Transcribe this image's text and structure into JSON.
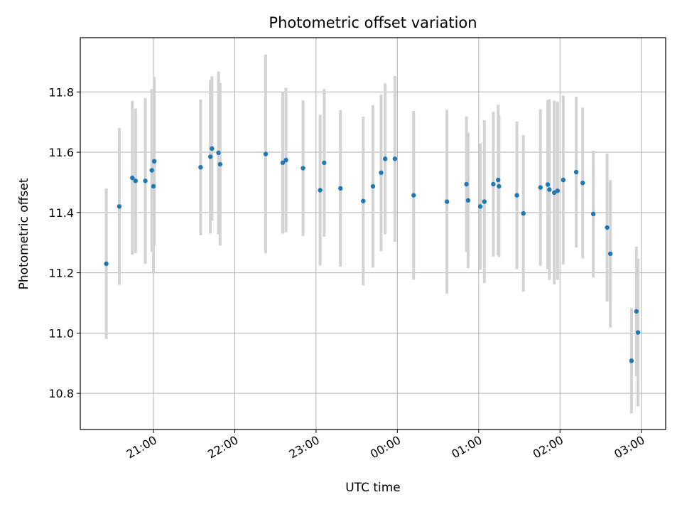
{
  "chart_data": {
    "type": "scatter",
    "title": "Photometric offset variation",
    "xlabel": "UTC time",
    "ylabel": "Photometric offset",
    "grid": true,
    "x_unit": "UTC hours (24-26 = 00:00-02:00 next day)",
    "xlim": [
      20.1,
      27.3
    ],
    "ylim": [
      10.68,
      11.98
    ],
    "x_ticks": [
      {
        "value": 21,
        "label": "21:00"
      },
      {
        "value": 22,
        "label": "22:00"
      },
      {
        "value": 23,
        "label": "23:00"
      },
      {
        "value": 24,
        "label": "00:00"
      },
      {
        "value": 25,
        "label": "01:00"
      },
      {
        "value": 26,
        "label": "02:00"
      },
      {
        "value": 27,
        "label": "03:00"
      }
    ],
    "y_ticks": [
      {
        "value": 10.8,
        "label": "10.8"
      },
      {
        "value": 11.0,
        "label": "11.0"
      },
      {
        "value": 11.2,
        "label": "11.2"
      },
      {
        "value": 11.4,
        "label": "11.4"
      },
      {
        "value": 11.6,
        "label": "11.6"
      },
      {
        "value": 11.8,
        "label": "11.8"
      }
    ],
    "marker_color": "#1f77b4",
    "errorbar_color": "#d3d3d3",
    "series": [
      {
        "x": [
          20.42,
          20.58,
          20.74,
          20.78,
          20.9,
          20.98,
          21.0,
          21.01,
          21.58,
          21.7,
          21.72,
          21.8,
          21.82,
          22.38,
          22.59,
          22.63,
          22.84,
          23.05,
          23.1,
          23.3,
          23.58,
          23.7,
          23.8,
          23.85,
          23.97,
          24.2,
          24.61,
          24.85,
          24.87,
          25.02,
          25.07,
          25.18,
          25.24,
          25.25,
          25.47,
          25.55,
          25.76,
          25.85,
          25.87,
          25.93,
          25.97,
          26.04,
          26.2,
          26.28,
          26.41,
          26.58,
          26.62,
          26.88,
          26.94,
          26.96
        ],
        "y": [
          11.23,
          11.42,
          11.515,
          11.505,
          11.505,
          11.54,
          11.487,
          11.57,
          11.55,
          11.585,
          11.612,
          11.598,
          11.56,
          11.594,
          11.565,
          11.574,
          11.547,
          11.474,
          11.565,
          11.48,
          11.438,
          11.487,
          11.532,
          11.578,
          11.578,
          11.457,
          11.436,
          11.494,
          11.44,
          11.42,
          11.436,
          11.494,
          11.508,
          11.487,
          11.457,
          11.397,
          11.483,
          11.493,
          11.476,
          11.466,
          11.472,
          11.508,
          11.534,
          11.498,
          11.395,
          11.35,
          11.263,
          10.908,
          11.072,
          11.002
        ],
        "yerr": [
          0.25,
          0.26,
          0.255,
          0.24,
          0.275,
          0.27,
          0.29,
          0.28,
          0.225,
          0.255,
          0.24,
          0.27,
          0.27,
          0.33,
          0.235,
          0.24,
          0.225,
          0.25,
          0.245,
          0.26,
          0.28,
          0.27,
          0.26,
          0.25,
          0.275,
          0.28,
          0.305,
          0.225,
          0.225,
          0.21,
          0.27,
          0.24,
          0.25,
          0.235,
          0.245,
          0.26,
          0.26,
          0.28,
          0.3,
          0.305,
          0.295,
          0.28,
          0.25,
          0.25,
          0.21,
          0.245,
          0.245,
          0.175,
          0.215,
          0.245
        ]
      }
    ]
  }
}
